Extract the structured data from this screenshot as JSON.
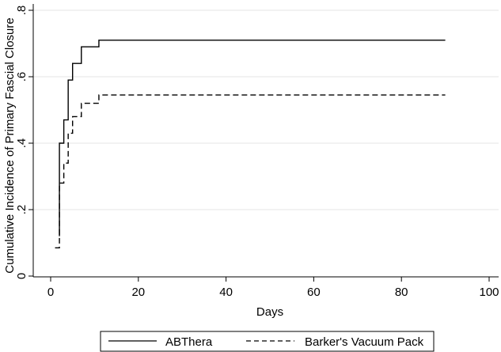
{
  "chart_data": {
    "type": "line",
    "xlabel": "Days",
    "ylabel": "Cumulative Incidence of Primary Fascial Closure",
    "xlim": [
      0,
      100
    ],
    "ylim": [
      0,
      0.8
    ],
    "x_ticks": [
      0,
      20,
      40,
      60,
      80,
      100
    ],
    "y_ticks": [
      0,
      0.2,
      0.4,
      0.6,
      0.8
    ],
    "x_tick_labels": [
      "0",
      "20",
      "40",
      "60",
      "80",
      "100"
    ],
    "y_tick_labels": [
      "0",
      ".2",
      ".4",
      ".6",
      ".8"
    ],
    "grid": "horizontal",
    "legend": "bottom",
    "series": [
      {
        "name": "ABThera",
        "line_style": "solid",
        "color": "#000000",
        "steps": [
          [
            2,
            0.12
          ],
          [
            2,
            0.4
          ],
          [
            3,
            0.47
          ],
          [
            4,
            0.59
          ],
          [
            5,
            0.64
          ],
          [
            7,
            0.69
          ],
          [
            11,
            0.71
          ],
          [
            90,
            0.71
          ]
        ]
      },
      {
        "name": "Barker's Vacuum Pack",
        "line_style": "dashed",
        "color": "#000000",
        "steps": [
          [
            1,
            0.085
          ],
          [
            2,
            0.13
          ],
          [
            2,
            0.28
          ],
          [
            3,
            0.34
          ],
          [
            4,
            0.43
          ],
          [
            5,
            0.48
          ],
          [
            7,
            0.52
          ],
          [
            11,
            0.545
          ],
          [
            90,
            0.545
          ]
        ]
      }
    ]
  }
}
